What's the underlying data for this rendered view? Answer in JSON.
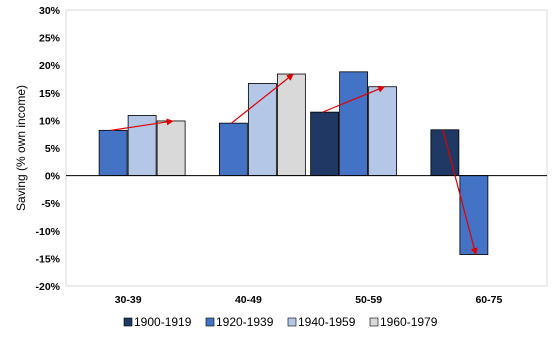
{
  "chart_data": {
    "type": "bar",
    "title": "",
    "xlabel": "",
    "ylabel": "Saving (% own income)",
    "ylim": [
      -20,
      30
    ],
    "ytick_values": [
      30,
      25,
      20,
      15,
      10,
      5,
      0,
      -5,
      -10,
      -15,
      -20
    ],
    "ytick_labels": [
      "30%",
      "25%",
      "20%",
      "15%",
      "10%",
      "5%",
      "0%",
      "-5%",
      "-10%",
      "-15%",
      "-20%"
    ],
    "categories": [
      "30-39",
      "40-49",
      "50-59",
      "60-75"
    ],
    "series": [
      {
        "name": "1900-1919",
        "color": "#1f3864",
        "values": [
          null,
          null,
          11.5,
          8.3
        ]
      },
      {
        "name": "1920-1939",
        "color": "#4472c4",
        "values": [
          8.2,
          9.5,
          18.8,
          -14.3
        ]
      },
      {
        "name": "1940-1959",
        "color": "#b4c7e7",
        "values": [
          10.9,
          16.7,
          16.1,
          null
        ]
      },
      {
        "name": "1960-1979",
        "color": "#d9d9d9",
        "values": [
          9.9,
          18.4,
          null,
          null
        ]
      }
    ],
    "arrows": [
      {
        "category": "30-39",
        "from_series": 1,
        "to_series": 3
      },
      {
        "category": "40-49",
        "from_series": 1,
        "to_series": 3
      },
      {
        "category": "50-59",
        "from_series": 0,
        "to_series": 2
      },
      {
        "category": "60-75",
        "from_series": 0,
        "to_series": 1
      }
    ],
    "arrow_color": "#e00000",
    "grid": false,
    "legend_position": "bottom"
  }
}
